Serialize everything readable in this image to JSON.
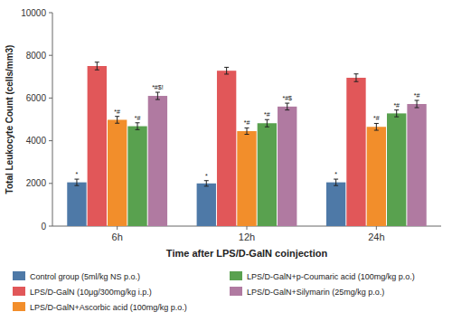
{
  "chart_data": {
    "type": "bar",
    "xlabel": "Time after LPS/D-GalN coinjection",
    "ylabel": "Total Leukocyte Count (cells/mm3)",
    "categories": [
      "6h",
      "12h",
      "24h"
    ],
    "series": [
      {
        "name": "Control group (5ml/kg NS p.o.)",
        "values": [
          2050,
          2000,
          2050
        ],
        "errors": [
          150,
          130,
          150
        ],
        "annotations": [
          "*",
          "*",
          "*"
        ]
      },
      {
        "name": "LPS/D-GalN (10μg/300mg/kg i.p.)",
        "values": [
          7500,
          7280,
          6950
        ],
        "errors": [
          180,
          160,
          180
        ]
      },
      {
        "name": "LPS/D-GalN+Ascorbic acid (100mg/kg p.o.)",
        "values": [
          4980,
          4450,
          4650
        ],
        "errors": [
          160,
          150,
          160
        ],
        "annotations": [
          "*#",
          "*#",
          "*#"
        ]
      },
      {
        "name": "LPS/D-GalN+p-Coumaric acid (100mg/kg p.o.)",
        "values": [
          4680,
          4820,
          5280
        ],
        "errors": [
          160,
          170,
          160
        ],
        "annotations": [
          "*#",
          "*#",
          "*#"
        ]
      },
      {
        "name": "LPS/D-GalN+Silymarin (25mg/kg p.o.)",
        "values": [
          6100,
          5600,
          5720
        ],
        "errors": [
          170,
          160,
          170
        ],
        "annotations": [
          "*#$!",
          "*#$",
          "*#"
        ]
      }
    ],
    "ylim": [
      0,
      10000
    ],
    "yticks": [
      0,
      2000,
      4000,
      6000,
      8000,
      10000
    ],
    "grid": false,
    "legend": "bottom"
  }
}
